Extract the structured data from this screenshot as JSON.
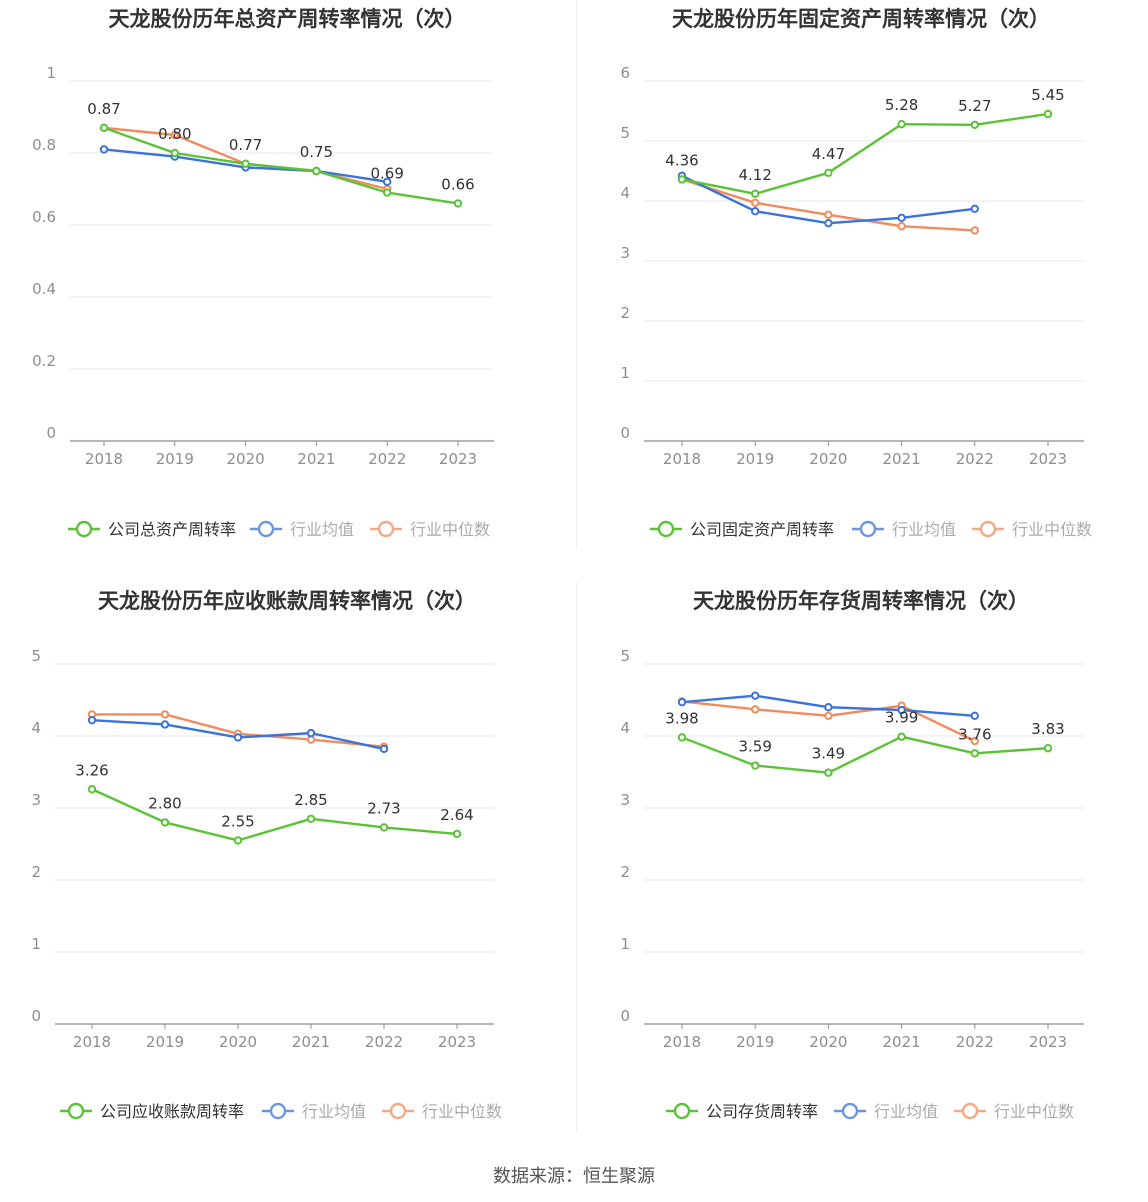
{
  "source_label": "数据来源：恒生聚源",
  "colors": {
    "company": "#5ac335",
    "avg": "#3b73db",
    "median": "#f28b5b"
  },
  "legend_labels": {
    "avg": "行业均值",
    "median": "行业中位数"
  },
  "chart_data": [
    {
      "type": "line",
      "title": "天龙股份历年总资产周转率情况（次）",
      "categories": [
        "2018",
        "2019",
        "2020",
        "2021",
        "2022",
        "2023"
      ],
      "ylim": [
        0,
        1
      ],
      "yticks": [
        "0",
        "0.2",
        "0.4",
        "0.6",
        "0.8",
        "1"
      ],
      "series": [
        {
          "name": "公司总资产周转率",
          "values": [
            0.87,
            0.8,
            0.77,
            0.75,
            0.69,
            0.66
          ],
          "labels": [
            "0.87",
            "0.80",
            "0.77",
            "0.75",
            "0.69",
            "0.66"
          ]
        },
        {
          "name": "行业均值",
          "values": [
            0.81,
            0.79,
            0.76,
            0.75,
            0.72,
            null
          ]
        },
        {
          "name": "行业中位数",
          "values": [
            0.87,
            0.85,
            0.77,
            0.75,
            0.7,
            null
          ]
        }
      ]
    },
    {
      "type": "line",
      "title": "天龙股份历年固定资产周转率情况（次）",
      "categories": [
        "2018",
        "2019",
        "2020",
        "2021",
        "2022",
        "2023"
      ],
      "ylim": [
        0,
        6
      ],
      "yticks": [
        "0",
        "1",
        "2",
        "3",
        "4",
        "5",
        "6"
      ],
      "series": [
        {
          "name": "公司固定资产周转率",
          "values": [
            4.36,
            4.12,
            4.47,
            5.28,
            5.27,
            5.45
          ],
          "labels": [
            "4.36",
            "4.12",
            "4.47",
            "5.28",
            "5.27",
            "5.45"
          ]
        },
        {
          "name": "行业均值",
          "values": [
            4.42,
            3.83,
            3.63,
            3.72,
            3.87,
            null
          ]
        },
        {
          "name": "行业中位数",
          "values": [
            4.36,
            3.97,
            3.77,
            3.58,
            3.51,
            null
          ]
        }
      ]
    },
    {
      "type": "line",
      "title": "天龙股份历年应收账款周转率情况（次）",
      "categories": [
        "2018",
        "2019",
        "2020",
        "2021",
        "2022",
        "2023"
      ],
      "ylim": [
        0,
        5
      ],
      "yticks": [
        "0",
        "1",
        "2",
        "3",
        "4",
        "5"
      ],
      "series": [
        {
          "name": "公司应收账款周转率",
          "values": [
            3.26,
            2.8,
            2.55,
            2.85,
            2.73,
            2.64
          ],
          "labels": [
            "3.26",
            "2.80",
            "2.55",
            "2.85",
            "2.73",
            "2.64"
          ]
        },
        {
          "name": "行业均值",
          "values": [
            4.22,
            4.16,
            3.98,
            4.04,
            3.82,
            null
          ]
        },
        {
          "name": "行业中位数",
          "values": [
            4.3,
            4.3,
            4.03,
            3.95,
            3.85,
            null
          ]
        }
      ]
    },
    {
      "type": "line",
      "title": "天龙股份历年存货周转率情况（次）",
      "categories": [
        "2018",
        "2019",
        "2020",
        "2021",
        "2022",
        "2023"
      ],
      "ylim": [
        0,
        5
      ],
      "yticks": [
        "0",
        "1",
        "2",
        "3",
        "4",
        "5"
      ],
      "series": [
        {
          "name": "公司存货周转率",
          "values": [
            3.98,
            3.59,
            3.49,
            3.99,
            3.76,
            3.83
          ],
          "labels": [
            "3.98",
            "3.59",
            "3.49",
            "3.99",
            "3.76",
            "3.83"
          ]
        },
        {
          "name": "行业均值",
          "values": [
            4.47,
            4.56,
            4.4,
            4.36,
            4.28,
            null
          ]
        },
        {
          "name": "行业中位数",
          "values": [
            4.48,
            4.37,
            4.28,
            4.42,
            3.93,
            null
          ]
        }
      ]
    }
  ]
}
